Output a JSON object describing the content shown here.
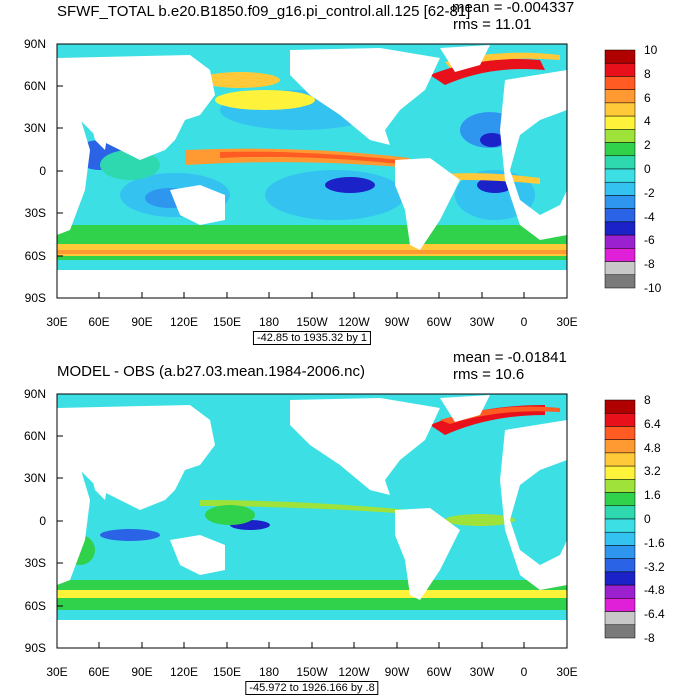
{
  "panels": [
    {
      "title": "SFWF_TOTAL b.e20.B1850.f09_g16.pi_control.all.125 [62-81]",
      "mean": "mean = -0.004337",
      "rms": "rms = 11.01",
      "range_note": "-42.85 to 1935.32 by 1",
      "lat_labels": [
        "90N",
        "60N",
        "30N",
        "0",
        "30S",
        "60S",
        "90S"
      ],
      "lon_labels": [
        "30E",
        "60E",
        "90E",
        "120E",
        "150E",
        "180",
        "150W",
        "120W",
        "90W",
        "60W",
        "30W",
        "0",
        "30E"
      ],
      "colorbar": {
        "labels": [
          "10",
          "8",
          "6",
          "4",
          "2",
          "0",
          "-2",
          "-4",
          "-6",
          "-8",
          "-10"
        ],
        "colors": [
          "#b00000",
          "#e8101a",
          "#ff5b22",
          "#ff9a33",
          "#ffc93a",
          "#fff23a",
          "#9fe33a",
          "#2fd24a",
          "#2fd9b0",
          "#3bdfe4",
          "#34c2f0",
          "#2f96f0",
          "#2b63e6",
          "#1a22c8",
          "#9a20d0",
          "#e020d8",
          "#c8c8c8",
          "#7a7a7a"
        ]
      }
    },
    {
      "title": "MODEL - OBS (a.b27.03.mean.1984-2006.nc)",
      "mean": "mean = -0.01841",
      "rms": "rms = 10.6",
      "range_note": "-45.972 to 1926.166 by .8",
      "lat_labels": [
        "90N",
        "60N",
        "30N",
        "0",
        "30S",
        "60S",
        "90S"
      ],
      "lon_labels": [
        "30E",
        "60E",
        "90E",
        "120E",
        "150E",
        "180",
        "150W",
        "120W",
        "90W",
        "60W",
        "30W",
        "0",
        "30E"
      ],
      "colorbar": {
        "labels": [
          "8",
          "6.4",
          "4.8",
          "3.2",
          "1.6",
          "0",
          "-1.6",
          "-3.2",
          "-4.8",
          "-6.4",
          "-8"
        ],
        "colors": [
          "#b00000",
          "#e8101a",
          "#ff5b22",
          "#ff9a33",
          "#ffc93a",
          "#fff23a",
          "#9fe33a",
          "#2fd24a",
          "#2fd9b0",
          "#3bdfe4",
          "#34c2f0",
          "#2f96f0",
          "#2b63e6",
          "#1a22c8",
          "#9a20d0",
          "#e020d8",
          "#c8c8c8",
          "#7a7a7a"
        ]
      }
    }
  ]
}
